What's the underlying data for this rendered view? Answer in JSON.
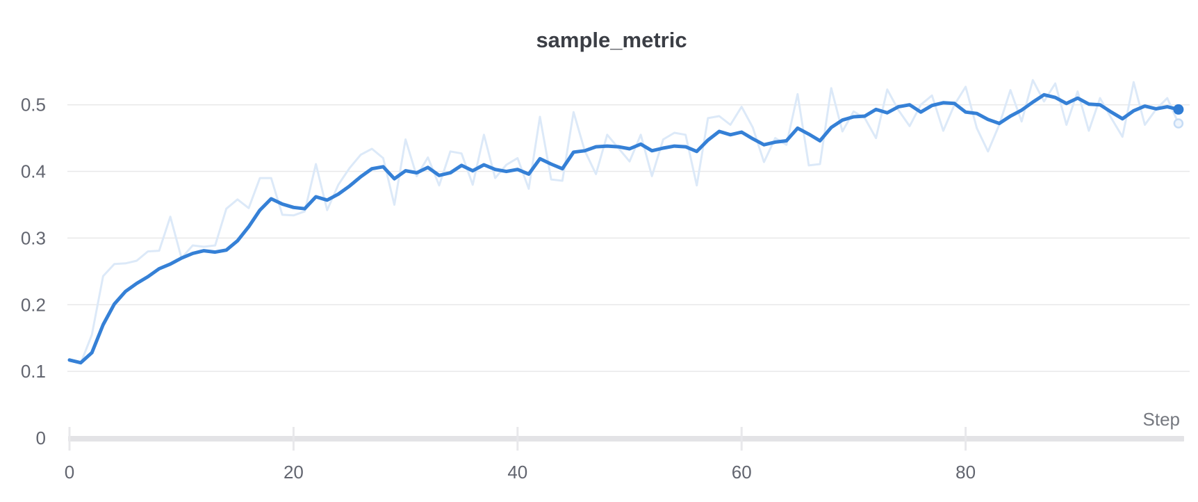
{
  "chart_data": {
    "type": "line",
    "title": "sample_metric",
    "xlabel": "Step",
    "ylabel": "",
    "x_ticks": [
      0,
      20,
      40,
      60,
      80
    ],
    "y_ticks": [
      0,
      0.1,
      0.2,
      0.3,
      0.4,
      0.5
    ],
    "x_range": [
      0,
      99
    ],
    "y_range": [
      0,
      0.55
    ],
    "grid": "horizontal-only",
    "legend": "none",
    "steps": [
      0,
      1,
      2,
      3,
      4,
      5,
      6,
      7,
      8,
      9,
      10,
      11,
      12,
      13,
      14,
      15,
      16,
      17,
      18,
      19,
      20,
      21,
      22,
      23,
      24,
      25,
      26,
      27,
      28,
      29,
      30,
      31,
      32,
      33,
      34,
      35,
      36,
      37,
      38,
      39,
      40,
      41,
      42,
      43,
      44,
      45,
      46,
      47,
      48,
      49,
      50,
      51,
      52,
      53,
      54,
      55,
      56,
      57,
      58,
      59,
      60,
      61,
      62,
      63,
      64,
      65,
      66,
      67,
      68,
      69,
      70,
      71,
      72,
      73,
      74,
      75,
      76,
      77,
      78,
      79,
      80,
      81,
      82,
      83,
      84,
      85,
      86,
      87,
      88,
      89,
      90,
      91,
      92,
      93,
      94,
      95,
      96,
      97,
      98,
      99
    ],
    "series": [
      {
        "name": "sample_metric (raw)",
        "role": "raw",
        "color": "#dce9f8",
        "line_width": 3,
        "values": [
          0.117,
          0.112,
          0.155,
          0.243,
          0.261,
          0.262,
          0.266,
          0.28,
          0.281,
          0.332,
          0.27,
          0.289,
          0.287,
          0.289,
          0.344,
          0.358,
          0.345,
          0.39,
          0.39,
          0.335,
          0.334,
          0.34,
          0.411,
          0.342,
          0.38,
          0.405,
          0.425,
          0.434,
          0.42,
          0.35,
          0.448,
          0.393,
          0.421,
          0.379,
          0.43,
          0.427,
          0.38,
          0.455,
          0.39,
          0.41,
          0.42,
          0.374,
          0.482,
          0.388,
          0.386,
          0.489,
          0.431,
          0.396,
          0.455,
          0.435,
          0.415,
          0.455,
          0.393,
          0.448,
          0.458,
          0.455,
          0.379,
          0.48,
          0.483,
          0.47,
          0.497,
          0.466,
          0.414,
          0.45,
          0.44,
          0.516,
          0.409,
          0.411,
          0.525,
          0.46,
          0.49,
          0.48,
          0.45,
          0.523,
          0.492,
          0.468,
          0.5,
          0.514,
          0.461,
          0.5,
          0.527,
          0.465,
          0.43,
          0.47,
          0.522,
          0.475,
          0.537,
          0.505,
          0.532,
          0.47,
          0.52,
          0.461,
          0.51,
          0.48,
          0.452,
          0.534,
          0.47,
          0.493,
          0.51,
          0.472
        ]
      },
      {
        "name": "sample_metric (smoothed)",
        "role": "smoothed",
        "color": "#3580d6",
        "line_width": 5,
        "values": [
          0.117,
          0.113,
          0.128,
          0.17,
          0.201,
          0.22,
          0.232,
          0.242,
          0.254,
          0.261,
          0.27,
          0.277,
          0.281,
          0.279,
          0.282,
          0.296,
          0.317,
          0.342,
          0.359,
          0.351,
          0.346,
          0.344,
          0.362,
          0.357,
          0.366,
          0.378,
          0.392,
          0.404,
          0.407,
          0.389,
          0.401,
          0.398,
          0.406,
          0.394,
          0.398,
          0.409,
          0.401,
          0.41,
          0.403,
          0.4,
          0.403,
          0.396,
          0.419,
          0.411,
          0.404,
          0.429,
          0.431,
          0.437,
          0.438,
          0.437,
          0.434,
          0.441,
          0.431,
          0.435,
          0.438,
          0.437,
          0.43,
          0.447,
          0.46,
          0.455,
          0.459,
          0.449,
          0.44,
          0.444,
          0.446,
          0.465,
          0.456,
          0.446,
          0.466,
          0.477,
          0.482,
          0.483,
          0.493,
          0.488,
          0.497,
          0.5,
          0.489,
          0.499,
          0.503,
          0.502,
          0.489,
          0.487,
          0.478,
          0.472,
          0.483,
          0.492,
          0.504,
          0.515,
          0.511,
          0.502,
          0.51,
          0.501,
          0.5,
          0.489,
          0.479,
          0.491,
          0.498,
          0.494,
          0.497,
          0.493
        ]
      }
    ],
    "end_markers": {
      "smoothed_dot": {
        "step": 99,
        "value": 0.493,
        "fill": "#2f7cd4"
      },
      "raw_ring": {
        "step": 99,
        "value": 0.472,
        "stroke": "#c6dcf5",
        "fill": "#eef5fd"
      }
    },
    "colors": {
      "accent_blue": "#3580d6",
      "raw_blue": "#dce9f8",
      "gridline": "#e8e8e9",
      "axis_baseline": "#e3e3e6",
      "tick_mark": "#e8e8eb",
      "tick_text": "#62656f",
      "title_text": "#3b3e45",
      "step_label_text": "#75787f"
    }
  }
}
